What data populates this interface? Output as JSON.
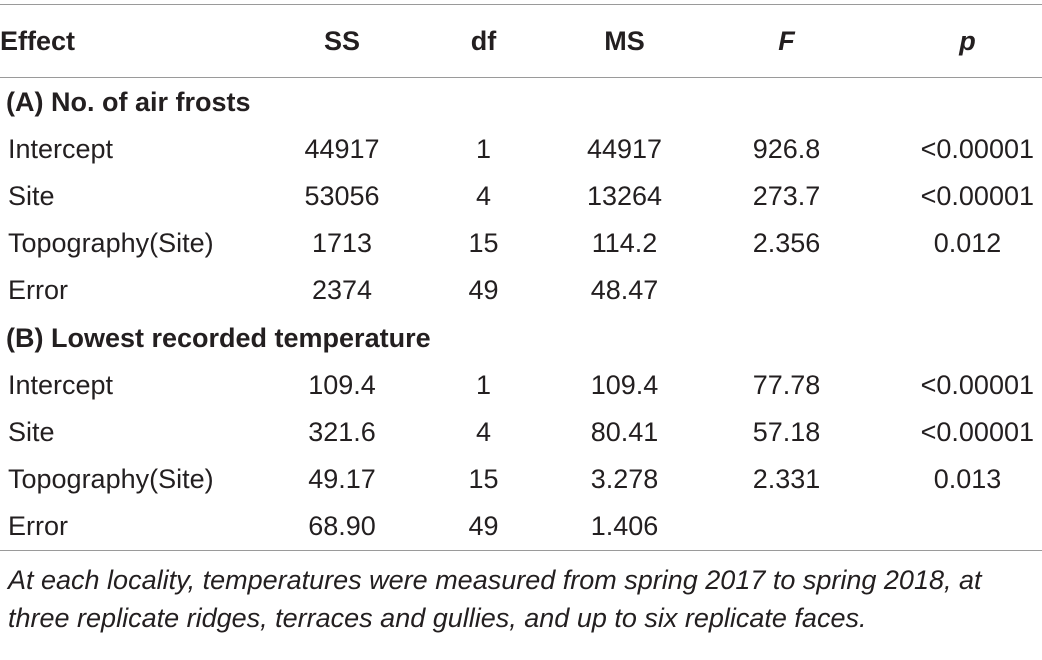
{
  "table": {
    "headers": {
      "effect": "Effect",
      "ss": "SS",
      "df": "df",
      "ms": "MS",
      "f": "F",
      "p": "p"
    },
    "sections": [
      {
        "title": "(A) No. of air frosts",
        "rows": [
          {
            "effect": "Intercept",
            "ss": "44917",
            "df": "1",
            "ms": "44917",
            "f": "926.8",
            "p": "<0.00001"
          },
          {
            "effect": "Site",
            "ss": "53056",
            "df": "4",
            "ms": "13264",
            "f": "273.7",
            "p": "<0.00001"
          },
          {
            "effect": "Topography(Site)",
            "ss": "1713",
            "df": "15",
            "ms": "114.2",
            "f": "2.356",
            "p": "0.012"
          },
          {
            "effect": "Error",
            "ss": "2374",
            "df": "49",
            "ms": "48.47",
            "f": "",
            "p": ""
          }
        ]
      },
      {
        "title": "(B) Lowest recorded temperature",
        "rows": [
          {
            "effect": "Intercept",
            "ss": "109.4",
            "df": "1",
            "ms": "109.4",
            "f": "77.78",
            "p": "<0.00001"
          },
          {
            "effect": "Site",
            "ss": "321.6",
            "df": "4",
            "ms": "80.41",
            "f": "57.18",
            "p": "<0.00001"
          },
          {
            "effect": "Topography(Site)",
            "ss": "49.17",
            "df": "15",
            "ms": "3.278",
            "f": "2.331",
            "p": "0.013"
          },
          {
            "effect": "Error",
            "ss": "68.90",
            "df": "49",
            "ms": "1.406",
            "f": "",
            "p": ""
          }
        ]
      }
    ],
    "footnote": "At each locality, temperatures were measured from spring 2017 to spring 2018, at three replicate ridges, terraces and gullies, and up to six replicate faces."
  }
}
